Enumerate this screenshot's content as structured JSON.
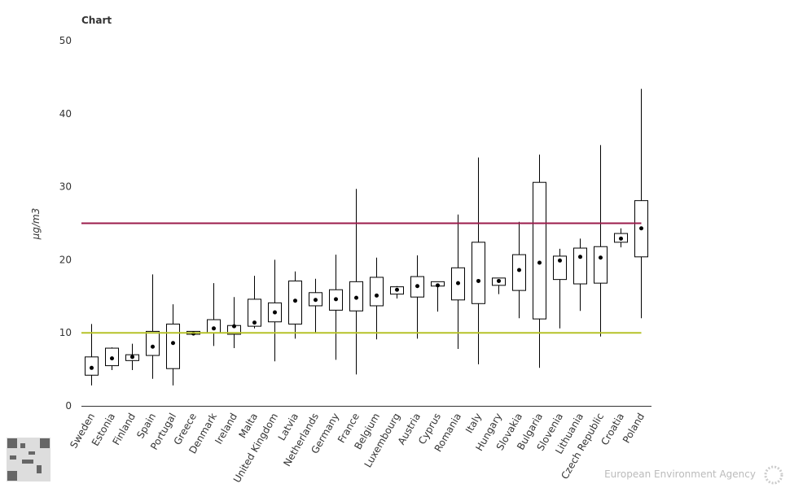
{
  "chart_data": {
    "type": "box",
    "title": "Chart",
    "y_label": "µg/m3",
    "categories": [
      "Sweden",
      "Estonia",
      "Finland",
      "Spain",
      "Portugal",
      "Greece",
      "Denmark",
      "Ireland",
      "Malta",
      "United Kingdom",
      "Latvia",
      "Netherlands",
      "Germany",
      "France",
      "Belgium",
      "Luxembourg",
      "Austria",
      "Cyprus",
      "Romania",
      "Italy",
      "Hungary",
      "Slovakia",
      "Bulgaria",
      "Slovenia",
      "Lithuania",
      "Czech Republic",
      "Croatia",
      "Poland"
    ],
    "min": [
      2.8,
      4.9,
      4.9,
      3.7,
      2.8,
      9.7,
      8.2,
      7.9,
      10.6,
      6.1,
      9.2,
      10.0,
      6.3,
      4.3,
      9.1,
      14.7,
      9.2,
      12.9,
      7.8,
      5.7,
      15.3,
      12.0,
      5.2,
      10.6,
      13.0,
      9.5,
      21.7,
      12.0
    ],
    "q1": [
      4.2,
      5.5,
      6.2,
      6.9,
      5.1,
      9.8,
      10.0,
      9.8,
      10.9,
      11.5,
      11.2,
      13.7,
      13.1,
      13.0,
      13.7,
      15.3,
      14.9,
      16.4,
      14.5,
      14.0,
      16.5,
      15.8,
      11.9,
      17.3,
      16.7,
      16.8,
      22.4,
      20.4
    ],
    "median": [
      5.2,
      6.5,
      6.7,
      8.1,
      8.6,
      9.9,
      10.6,
      10.9,
      11.4,
      12.8,
      14.4,
      14.5,
      14.6,
      14.8,
      15.1,
      15.9,
      16.4,
      16.5,
      16.8,
      17.1,
      17.1,
      18.6,
      19.6,
      19.9,
      20.4,
      20.3,
      22.9,
      24.3
    ],
    "q3": [
      6.7,
      7.9,
      7.0,
      10.2,
      11.2,
      10.2,
      11.8,
      11.0,
      14.6,
      14.1,
      17.1,
      15.5,
      15.9,
      17.0,
      17.6,
      16.3,
      17.7,
      17.0,
      18.9,
      22.4,
      17.5,
      20.7,
      30.6,
      20.5,
      21.6,
      21.8,
      23.6,
      28.1
    ],
    "max": [
      11.2,
      8.0,
      8.5,
      18.0,
      13.9,
      10.2,
      16.8,
      14.9,
      17.8,
      20.0,
      18.4,
      17.4,
      20.7,
      29.7,
      20.3,
      16.4,
      20.6,
      17.0,
      26.2,
      34.0,
      17.5,
      25.2,
      34.4,
      21.5,
      22.9,
      35.7,
      24.3,
      43.4
    ],
    "box_color": "#000000",
    "reference_lines": [
      {
        "value": 25,
        "color": "#9b1b4b"
      },
      {
        "value": 10,
        "color": "#b5c229"
      }
    ],
    "ylim": [
      0,
      50
    ],
    "yticks": [
      0,
      10,
      20,
      30,
      40,
      50
    ],
    "grid": false
  },
  "footer": "European Environment Agency"
}
